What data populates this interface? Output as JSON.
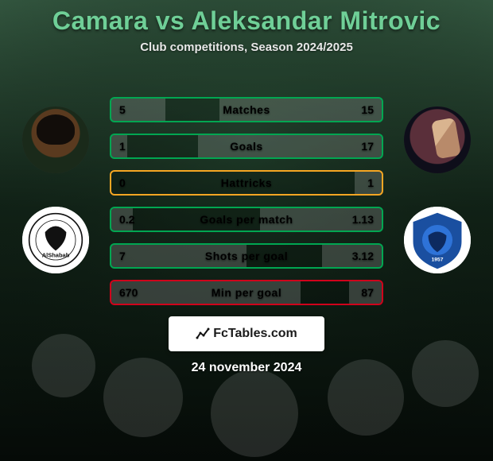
{
  "title": "Camara vs Aleksandar Mitrovic",
  "title_color": "#6fcf97",
  "subtitle": "Club competitions, Season 2024/2025",
  "date": "24 november 2024",
  "badge_text": "FcTables.com",
  "background": {
    "top_gradient": [
      "#3a6248",
      "#0a1410"
    ],
    "mid_overlay": "#0a140faa"
  },
  "players": {
    "left": {
      "name": "Camara",
      "club_label": "AlShabab"
    },
    "right": {
      "name": "Aleksandar Mitrovic",
      "club_label": "Al Hilal"
    }
  },
  "club_colors": {
    "left_primary": "#111111",
    "right_primary": "#1a4fa0",
    "right_accent": "#2e73d8"
  },
  "row_style": {
    "height": 32,
    "spacing": 14,
    "border_radius": 6,
    "fill_opacity": 0.18,
    "font_size": 14
  },
  "colors": {
    "green": "#00a651",
    "amber": "#f5a623",
    "red": "#d0021b"
  },
  "rows": [
    {
      "label": "Matches",
      "left_val": "5",
      "right_val": "15",
      "left_pct": 20,
      "right_pct": 60,
      "border": "#00a651"
    },
    {
      "label": "Goals",
      "left_val": "1",
      "right_val": "17",
      "left_pct": 6,
      "right_pct": 68,
      "border": "#00a651"
    },
    {
      "label": "Hattricks",
      "left_val": "0",
      "right_val": "1",
      "left_pct": 0,
      "right_pct": 10,
      "border": "#f5a623"
    },
    {
      "label": "Goals per match",
      "left_val": "0.2",
      "right_val": "1.13",
      "left_pct": 8,
      "right_pct": 45,
      "border": "#00a651"
    },
    {
      "label": "Shots per goal",
      "left_val": "7",
      "right_val": "3.12",
      "left_pct": 50,
      "right_pct": 22,
      "border": "#00a651"
    },
    {
      "label": "Min per goal",
      "left_val": "670",
      "right_val": "87",
      "left_pct": 70,
      "right_pct": 12,
      "border": "#d0021b"
    }
  ]
}
